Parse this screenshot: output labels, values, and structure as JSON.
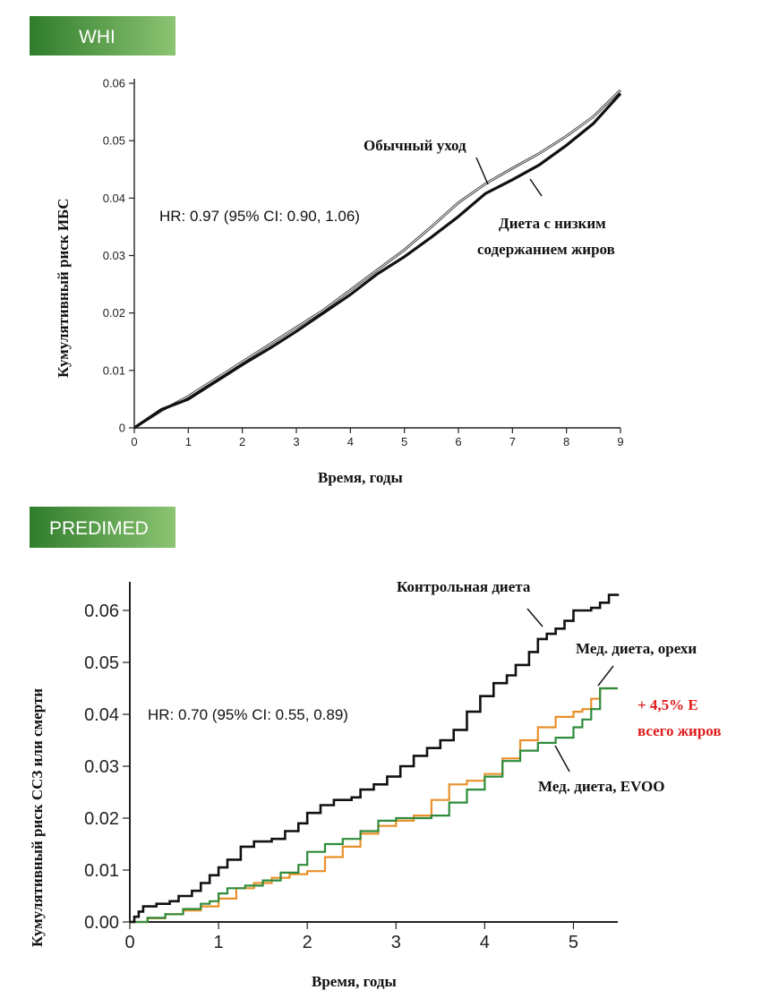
{
  "colors": {
    "banner_green_dark": "#2f7d2c",
    "banner_green_light": "#8cc472",
    "control": "#111111",
    "evoo": "#2e8b3a",
    "nuts": "#e8902a",
    "highlight_red": "#e01b1b"
  },
  "chart_data": [
    {
      "type": "line",
      "banner": "WHI",
      "title": "",
      "xlabel": "Время, годы",
      "ylabel": "Кумулятивный риск ИБС",
      "xlim": [
        0,
        9
      ],
      "ylim": [
        0,
        0.06
      ],
      "x_ticks": [
        "0",
        "1",
        "2",
        "3",
        "4",
        "5",
        "6",
        "7",
        "8",
        "9"
      ],
      "y_ticks": [
        "0",
        "0.01",
        "0.02",
        "0.03",
        "0.04",
        "0.05",
        "0.06"
      ],
      "hr_text": "HR: 0.97  (95% CI: 0.90, 1.06)",
      "series": [
        {
          "name": "Обычный уход",
          "label_lines": [
            "Обычный уход"
          ],
          "x": [
            0,
            0.5,
            1,
            1.5,
            2,
            2.5,
            3,
            3.5,
            4,
            4.5,
            5,
            5.5,
            6,
            6.5,
            7,
            7.5,
            8,
            8.5,
            9
          ],
          "values": [
            0,
            0.003,
            0.0055,
            0.0085,
            0.0115,
            0.0145,
            0.0175,
            0.0205,
            0.024,
            0.0275,
            0.031,
            0.035,
            0.0392,
            0.0425,
            0.0452,
            0.0478,
            0.0508,
            0.0542,
            0.0588
          ]
        },
        {
          "name": "Диета с низким содержанием жиров",
          "label_lines": [
            "Диета с низким",
            "содержанием жиров"
          ],
          "x": [
            0,
            0.5,
            1,
            1.5,
            2,
            2.5,
            3,
            3.5,
            4,
            4.5,
            5,
            5.5,
            6,
            6.5,
            7,
            7.5,
            8,
            8.5,
            9
          ],
          "values": [
            0,
            0.0032,
            0.005,
            0.008,
            0.011,
            0.0138,
            0.0168,
            0.02,
            0.0232,
            0.0268,
            0.0298,
            0.0332,
            0.0368,
            0.0408,
            0.0432,
            0.0458,
            0.0492,
            0.053,
            0.0582
          ]
        }
      ]
    },
    {
      "type": "line",
      "banner": "PREDIMED",
      "title": "",
      "xlabel": "Время, годы",
      "ylabel": "Кумулятивный риск ССЗ или смерти",
      "xlim": [
        0,
        5.5
      ],
      "ylim": [
        0,
        0.065
      ],
      "x_ticks": [
        "0",
        "1",
        "2",
        "3",
        "4",
        "5"
      ],
      "y_ticks": [
        "0.00",
        "0.01",
        "0.02",
        "0.03",
        "0.04",
        "0.05",
        "0.06"
      ],
      "hr_text": "HR: 0.70  (95% CI: 0.55, 0.89)",
      "annotation_red": [
        "+ 4,5% E",
        "всего жиров"
      ],
      "series": [
        {
          "name": "Контрольная диета",
          "label_lines": [
            "Контрольная диета"
          ],
          "x": [
            0,
            0.05,
            0.1,
            0.15,
            0.3,
            0.45,
            0.55,
            0.7,
            0.8,
            0.9,
            1.0,
            1.1,
            1.25,
            1.4,
            1.6,
            1.75,
            1.9,
            2.0,
            2.15,
            2.3,
            2.5,
            2.6,
            2.75,
            2.9,
            3.05,
            3.2,
            3.35,
            3.5,
            3.65,
            3.8,
            3.95,
            4.1,
            4.25,
            4.35,
            4.5,
            4.6,
            4.7,
            4.8,
            4.9,
            5.0,
            5.2,
            5.3,
            5.4,
            5.5
          ],
          "values": [
            0,
            0.001,
            0.002,
            0.003,
            0.0035,
            0.004,
            0.005,
            0.006,
            0.0075,
            0.009,
            0.0105,
            0.012,
            0.0145,
            0.0155,
            0.016,
            0.0175,
            0.019,
            0.021,
            0.0225,
            0.0235,
            0.024,
            0.0255,
            0.0265,
            0.028,
            0.03,
            0.032,
            0.0335,
            0.035,
            0.037,
            0.0405,
            0.0435,
            0.046,
            0.0475,
            0.0495,
            0.052,
            0.0545,
            0.0555,
            0.0565,
            0.058,
            0.06,
            0.0605,
            0.0615,
            0.063,
            0.0632
          ]
        },
        {
          "name": "Мед. диета, EVOO",
          "label_lines": [
            "Мед. диета, EVOO"
          ],
          "x": [
            0,
            0.2,
            0.4,
            0.6,
            0.8,
            0.9,
            1.0,
            1.1,
            1.3,
            1.5,
            1.7,
            1.9,
            2.0,
            2.2,
            2.4,
            2.6,
            2.8,
            3.0,
            3.2,
            3.4,
            3.6,
            3.8,
            4.0,
            4.2,
            4.4,
            4.6,
            4.8,
            5.0,
            5.1,
            5.2,
            5.3,
            5.5
          ],
          "values": [
            0,
            0.0008,
            0.0015,
            0.0025,
            0.0035,
            0.004,
            0.0055,
            0.0065,
            0.007,
            0.008,
            0.0095,
            0.011,
            0.0135,
            0.015,
            0.016,
            0.0175,
            0.0195,
            0.02,
            0.02,
            0.0205,
            0.023,
            0.0255,
            0.028,
            0.031,
            0.033,
            0.0345,
            0.0355,
            0.0375,
            0.039,
            0.041,
            0.045,
            0.045
          ]
        },
        {
          "name": "Мед. диета, орехи",
          "label_lines": [
            "Мед. диета, орехи"
          ],
          "x": [
            0,
            0.2,
            0.4,
            0.6,
            0.8,
            1.0,
            1.2,
            1.4,
            1.6,
            1.8,
            2.0,
            2.2,
            2.4,
            2.6,
            2.8,
            3.0,
            3.2,
            3.4,
            3.6,
            3.8,
            4.0,
            4.2,
            4.4,
            4.6,
            4.8,
            5.0,
            5.1,
            5.2,
            5.3,
            5.5
          ],
          "values": [
            0,
            0.0007,
            0.0015,
            0.0022,
            0.003,
            0.0045,
            0.0065,
            0.0075,
            0.0085,
            0.0092,
            0.0098,
            0.0125,
            0.0145,
            0.017,
            0.0185,
            0.0195,
            0.0205,
            0.0235,
            0.0265,
            0.0272,
            0.0285,
            0.0315,
            0.035,
            0.0375,
            0.0395,
            0.0405,
            0.041,
            0.043,
            0.045,
            0.045
          ]
        }
      ]
    }
  ]
}
